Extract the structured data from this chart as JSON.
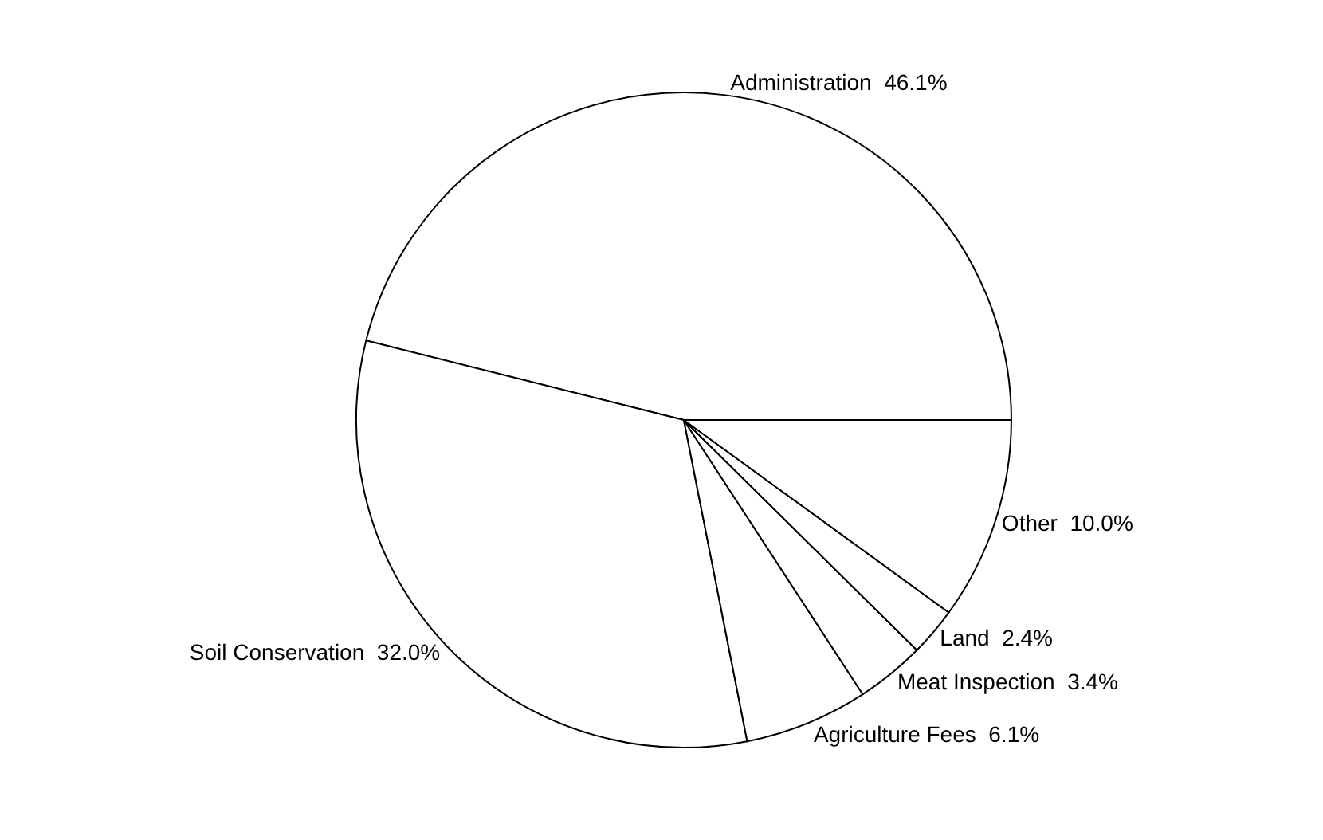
{
  "chart_data": {
    "type": "pie",
    "categories": [
      "Administration",
      "Soil Conservation",
      "Agriculture Fees",
      "Meat Inspection",
      "Land",
      "Other"
    ],
    "values": [
      46.1,
      32.0,
      6.1,
      3.4,
      2.4,
      10.0
    ],
    "value_labels": [
      "46.1%",
      "32.0%",
      "6.1%",
      "3.4%",
      "2.4%",
      "10.0%"
    ],
    "colors": [
      "#ffffff",
      "#ffffff",
      "#ffffff",
      "#ffffff",
      "#ffffff",
      "#ffffff"
    ]
  }
}
